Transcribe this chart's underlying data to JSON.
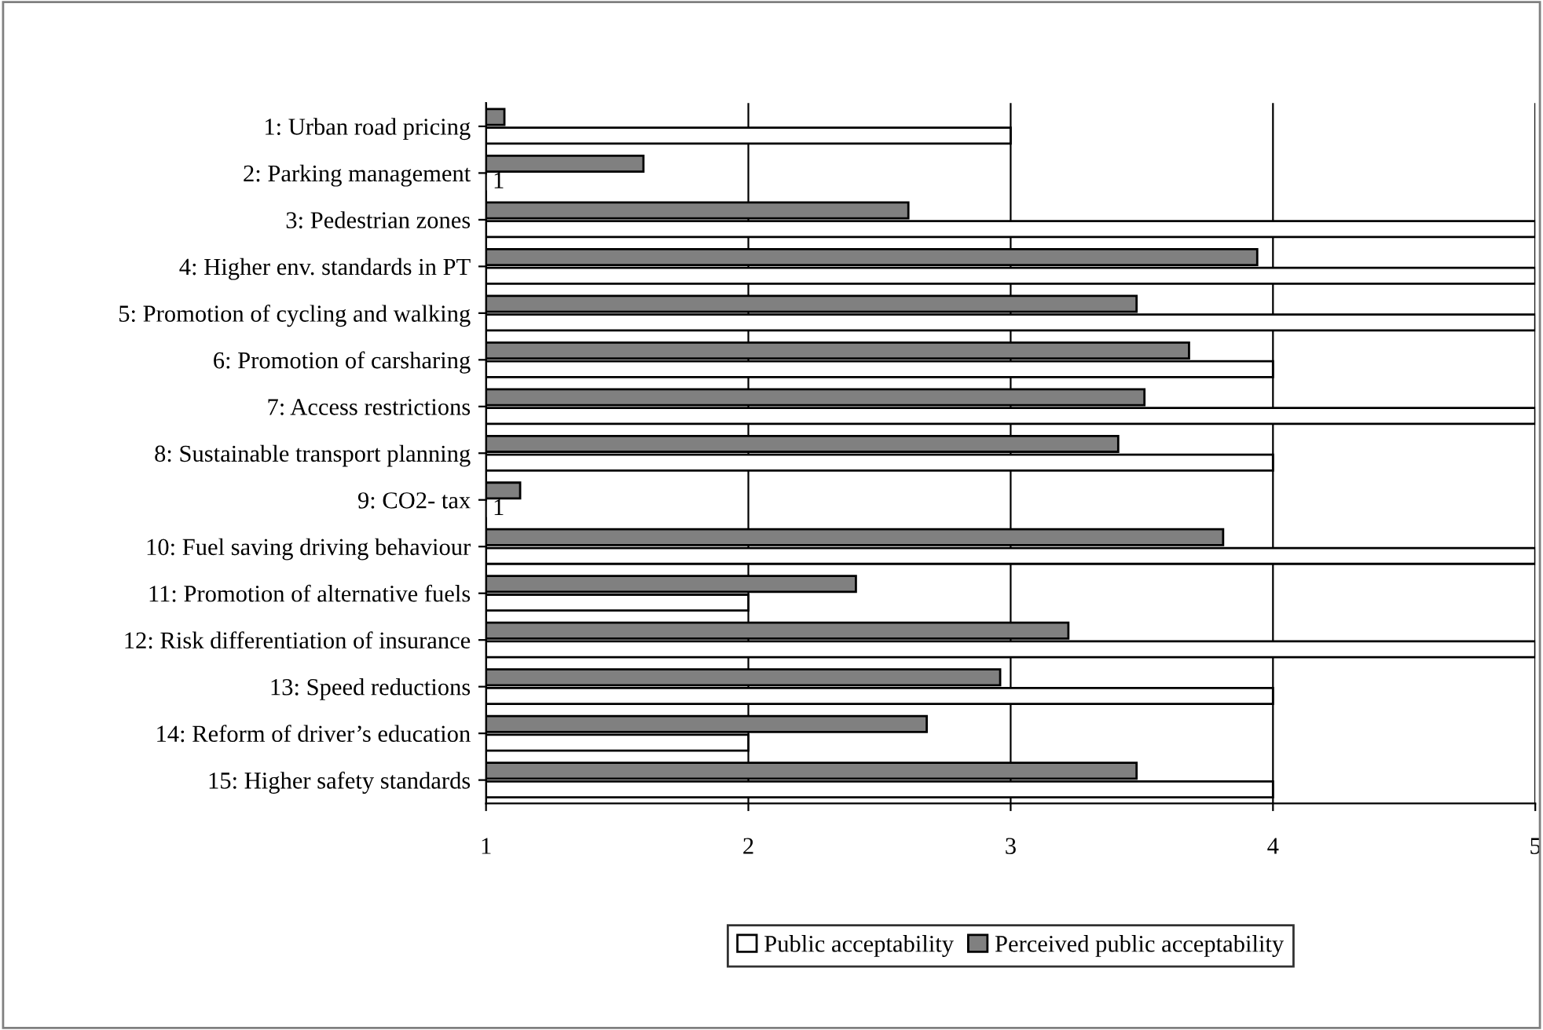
{
  "chart_data": {
    "type": "bar",
    "orientation": "horizontal",
    "categories": [
      "1: Urban road pricing",
      "2: Parking management",
      "3: Pedestrian zones",
      "4: Higher env. standards in PT",
      "5: Promotion of cycling and walking",
      "6: Promotion of carsharing",
      "7: Access restrictions",
      "8: Sustainable transport planning",
      "9: CO2- tax",
      "10: Fuel saving driving behaviour",
      "11: Promotion of alternative fuels",
      "12: Risk differentiation of insurance",
      "13: Speed reductions",
      "14: Reform of driver’s education",
      "15: Higher safety standards"
    ],
    "series": [
      {
        "name": "Perceived public acceptability",
        "color": "#808080",
        "values": [
          1.07,
          1.6,
          2.61,
          3.94,
          3.48,
          3.68,
          3.51,
          3.41,
          1.13,
          3.81,
          2.41,
          3.22,
          2.96,
          2.68,
          3.48
        ]
      },
      {
        "name": "Public acceptability",
        "color": "#ffffff",
        "values": [
          3,
          1,
          5,
          5,
          5,
          4,
          5,
          4,
          1,
          5,
          2,
          5,
          4,
          2,
          4
        ],
        "value_labels": [
          null,
          "1",
          null,
          null,
          null,
          null,
          null,
          null,
          "1",
          null,
          null,
          null,
          null,
          null,
          null
        ]
      }
    ],
    "xlim": [
      1,
      5
    ],
    "xticks": [
      1,
      2,
      3,
      4,
      5
    ],
    "grid": "x",
    "legend": "bottom"
  }
}
